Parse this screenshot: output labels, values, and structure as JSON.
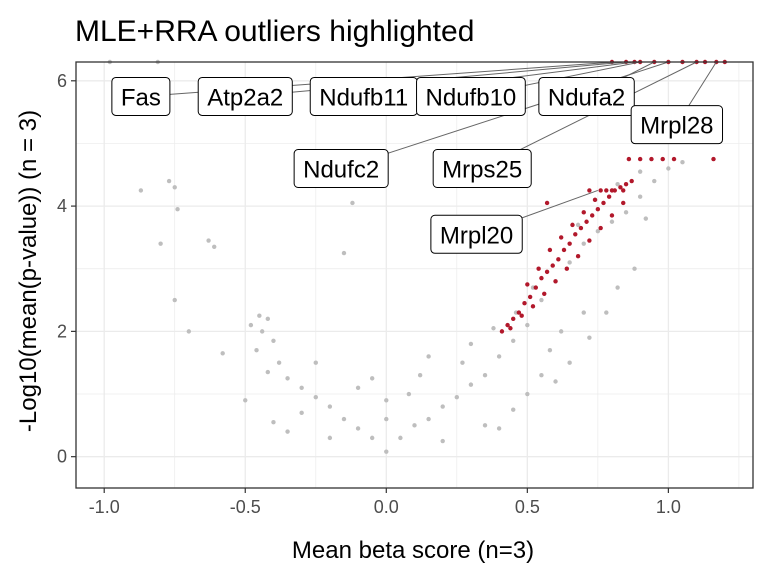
{
  "chart_data": {
    "type": "scatter",
    "title": "MLE+RRA outliers highlighted",
    "xlabel": "Mean beta score (n=3)",
    "ylabel": "-Log10(mean(p-value)) (n = 3)",
    "xlim": [
      -1.1,
      1.3
    ],
    "ylim": [
      -0.5,
      6.3
    ],
    "x_ticks": [
      -1.0,
      -0.5,
      0.0,
      0.5,
      1.0
    ],
    "x_tick_labels": [
      "-1.0",
      "-0.5",
      "0.0",
      "0.5",
      "1.0"
    ],
    "y_ticks": [
      0,
      2,
      4,
      6
    ],
    "y_tick_labels": [
      "0",
      "2",
      "4",
      "6"
    ],
    "grid": true,
    "colors": {
      "background_points": "#bebebe",
      "outlier_points": "#b2182b",
      "grid": "#ebebeb",
      "panel_border": "#333333",
      "label_segment": "#666666"
    },
    "series": [
      {
        "role": "all genes",
        "color": "#bebebe",
        "points": [
          [
            -0.98,
            6.3
          ],
          [
            -0.81,
            6.3
          ],
          [
            -0.75,
            4.3
          ],
          [
            -0.77,
            4.4
          ],
          [
            -0.74,
            3.95
          ],
          [
            -0.87,
            4.25
          ],
          [
            -0.8,
            3.4
          ],
          [
            -0.75,
            2.5
          ],
          [
            -0.7,
            2.0
          ],
          [
            -0.63,
            3.45
          ],
          [
            -0.61,
            3.35
          ],
          [
            -0.58,
            1.65
          ],
          [
            -0.12,
            4.05
          ],
          [
            -0.22,
            4.35
          ],
          [
            -0.15,
            3.25
          ],
          [
            -0.45,
            2.25
          ],
          [
            -0.42,
            2.2
          ],
          [
            -0.48,
            2.1
          ],
          [
            -0.44,
            2.0
          ],
          [
            -0.4,
            1.85
          ],
          [
            -0.46,
            1.7
          ],
          [
            -0.38,
            1.5
          ],
          [
            -0.35,
            1.25
          ],
          [
            -0.42,
            1.35
          ],
          [
            -0.3,
            1.1
          ],
          [
            -0.25,
            0.95
          ],
          [
            -0.2,
            0.8
          ],
          [
            -0.15,
            0.6
          ],
          [
            -0.1,
            0.45
          ],
          [
            -0.05,
            0.3
          ],
          [
            0.0,
            0.08
          ],
          [
            0.05,
            0.3
          ],
          [
            0.1,
            0.5
          ],
          [
            0.15,
            0.6
          ],
          [
            0.2,
            0.8
          ],
          [
            0.25,
            0.95
          ],
          [
            0.3,
            1.15
          ],
          [
            0.35,
            1.3
          ],
          [
            0.4,
            1.6
          ],
          [
            0.45,
            1.85
          ],
          [
            0.5,
            2.1
          ],
          [
            0.55,
            2.5
          ],
          [
            0.6,
            2.8
          ],
          [
            0.65,
            3.1
          ],
          [
            0.7,
            3.4
          ],
          [
            0.75,
            3.6
          ],
          [
            0.8,
            3.75
          ],
          [
            0.85,
            3.9
          ],
          [
            0.9,
            4.15
          ],
          [
            0.95,
            4.4
          ],
          [
            1.0,
            4.6
          ],
          [
            0.92,
            3.8
          ],
          [
            0.7,
            2.3
          ],
          [
            0.62,
            2.0
          ],
          [
            0.58,
            1.7
          ],
          [
            0.55,
            1.3
          ],
          [
            0.15,
            1.6
          ],
          [
            0.27,
            1.5
          ],
          [
            -0.1,
            1.1
          ],
          [
            0.08,
            1.0
          ],
          [
            -0.3,
            0.7
          ],
          [
            -0.5,
            0.9
          ],
          [
            -0.35,
            0.4
          ],
          [
            0.35,
            0.5
          ],
          [
            0.45,
            0.75
          ],
          [
            0.5,
            1.0
          ],
          [
            -0.2,
            0.3
          ],
          [
            0.2,
            0.25
          ],
          [
            -0.4,
            0.55
          ],
          [
            0.4,
            0.45
          ],
          [
            0.0,
            0.6
          ],
          [
            0.0,
            0.9
          ],
          [
            -0.05,
            1.25
          ],
          [
            0.12,
            1.3
          ],
          [
            -0.25,
            1.5
          ],
          [
            0.3,
            1.8
          ],
          [
            0.38,
            2.05
          ],
          [
            0.6,
            1.2
          ],
          [
            0.65,
            1.5
          ],
          [
            0.72,
            1.9
          ],
          [
            0.78,
            2.3
          ],
          [
            0.82,
            2.7
          ],
          [
            0.88,
            3.0
          ],
          [
            0.68,
            3.7
          ],
          [
            0.74,
            4.1
          ],
          [
            0.82,
            4.35
          ],
          [
            0.9,
            4.55
          ],
          [
            1.05,
            4.7
          ],
          [
            0.46,
            2.3
          ],
          [
            0.52,
            2.7
          ]
        ]
      },
      {
        "role": "outliers (MLE+RRA)",
        "color": "#b2182b",
        "points": [
          [
            0.41,
            2.0
          ],
          [
            0.43,
            2.1
          ],
          [
            0.45,
            2.2
          ],
          [
            0.47,
            2.3
          ],
          [
            0.49,
            2.45
          ],
          [
            0.51,
            2.55
          ],
          [
            0.53,
            2.7
          ],
          [
            0.55,
            2.85
          ],
          [
            0.57,
            2.95
          ],
          [
            0.59,
            3.05
          ],
          [
            0.61,
            3.15
          ],
          [
            0.63,
            3.3
          ],
          [
            0.65,
            3.4
          ],
          [
            0.67,
            3.55
          ],
          [
            0.69,
            3.65
          ],
          [
            0.71,
            3.75
          ],
          [
            0.73,
            3.85
          ],
          [
            0.75,
            3.95
          ],
          [
            0.77,
            4.05
          ],
          [
            0.79,
            4.15
          ],
          [
            0.81,
            4.25
          ],
          [
            0.83,
            4.3
          ],
          [
            0.85,
            4.35
          ],
          [
            0.87,
            4.4
          ],
          [
            0.44,
            2.05
          ],
          [
            0.48,
            2.25
          ],
          [
            0.52,
            2.4
          ],
          [
            0.56,
            2.6
          ],
          [
            0.6,
            2.8
          ],
          [
            0.64,
            3.0
          ],
          [
            0.68,
            3.2
          ],
          [
            0.72,
            3.45
          ],
          [
            0.76,
            3.65
          ],
          [
            0.8,
            3.85
          ],
          [
            0.84,
            4.05
          ],
          [
            0.62,
            3.5
          ],
          [
            0.66,
            3.7
          ],
          [
            0.7,
            3.9
          ],
          [
            0.74,
            4.1
          ],
          [
            0.78,
            4.25
          ],
          [
            0.58,
            3.3
          ],
          [
            0.54,
            3.0
          ],
          [
            0.5,
            2.75
          ],
          [
            0.72,
            4.25
          ],
          [
            0.76,
            4.25
          ],
          [
            0.8,
            4.25
          ],
          [
            0.84,
            4.25
          ],
          [
            0.57,
            4.05
          ],
          [
            0.9,
            4.75
          ],
          [
            0.94,
            4.75
          ],
          [
            0.98,
            4.75
          ],
          [
            1.02,
            4.75
          ],
          [
            1.16,
            4.75
          ],
          [
            0.86,
            4.75
          ],
          [
            0.8,
            6.3
          ],
          [
            0.85,
            6.3
          ],
          [
            0.88,
            6.3
          ],
          [
            0.9,
            6.3
          ],
          [
            0.95,
            6.3
          ],
          [
            1.0,
            6.3
          ],
          [
            1.05,
            6.3
          ],
          [
            1.1,
            6.3
          ],
          [
            1.13,
            6.3
          ],
          [
            1.17,
            6.3
          ],
          [
            1.2,
            6.3
          ]
        ]
      }
    ],
    "labels": [
      {
        "text": "Fas",
        "point": [
          0.81,
          6.3
        ],
        "at": [
          -0.87,
          5.75
        ]
      },
      {
        "text": "Atp2a2",
        "point": [
          0.85,
          6.3
        ],
        "at": [
          -0.5,
          5.75
        ]
      },
      {
        "text": "Ndufb11",
        "point": [
          0.88,
          6.3
        ],
        "at": [
          -0.08,
          5.75
        ]
      },
      {
        "text": "Ndufb10",
        "point": [
          0.9,
          6.3
        ],
        "at": [
          0.3,
          5.75
        ]
      },
      {
        "text": "Ndufa2",
        "point": [
          0.95,
          6.3
        ],
        "at": [
          0.71,
          5.75
        ]
      },
      {
        "text": "Mrpl28",
        "point": [
          1.17,
          6.3
        ],
        "at": [
          1.03,
          5.3
        ]
      },
      {
        "text": "Ndufc2",
        "point": [
          1.0,
          6.3
        ],
        "at": [
          -0.16,
          4.6
        ]
      },
      {
        "text": "Mrps25",
        "point": [
          1.1,
          6.3
        ],
        "at": [
          0.34,
          4.6
        ]
      },
      {
        "text": "Mrpl20",
        "point": [
          0.75,
          4.25
        ],
        "at": [
          0.32,
          3.55
        ]
      }
    ]
  }
}
